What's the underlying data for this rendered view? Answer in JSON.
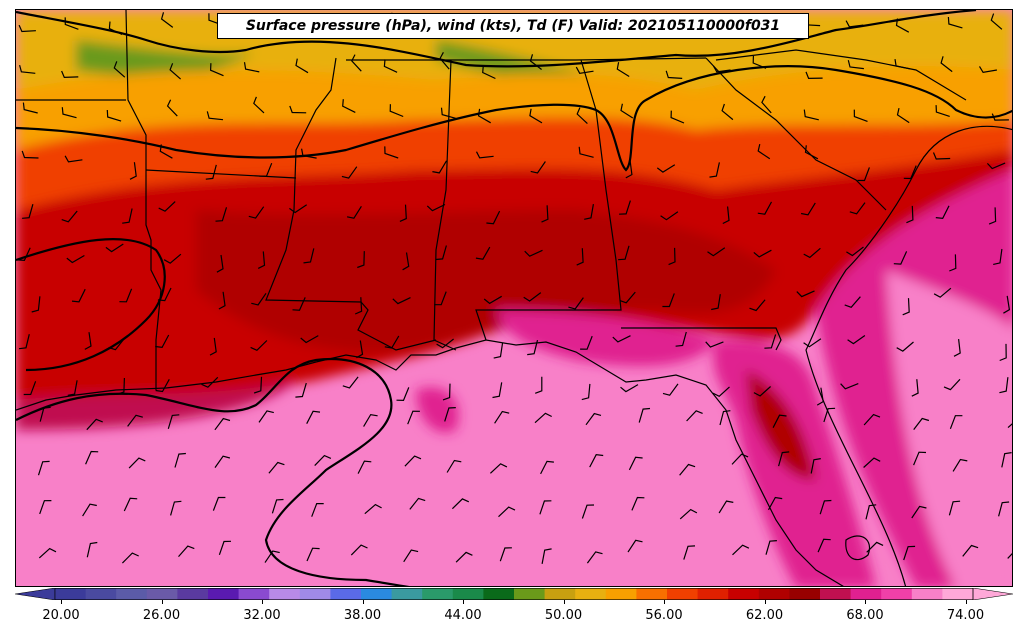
{
  "title": "Surface pressure (hPa), wind (kts), Td (F) Valid: 202105110000f031",
  "colorbar": {
    "ticks": [
      "20.00",
      "26.00",
      "32.00",
      "38.00",
      "44.00",
      "50.00",
      "56.00",
      "62.00",
      "68.00",
      "74.00"
    ],
    "colors": [
      "#3b3b9a",
      "#4a4aa0",
      "#5b5ba8",
      "#6a5aa8",
      "#5a3aa0",
      "#5a1ab0",
      "#8a4ad0",
      "#b88ae8",
      "#a08ae8",
      "#5a6ae8",
      "#2a8ae0",
      "#3a9aa0",
      "#2a9a6a",
      "#1a8a4a",
      "#0a6a1a",
      "#6a9a1a",
      "#c8a010",
      "#e8b010",
      "#f8a000",
      "#f87000",
      "#f04000",
      "#e02000",
      "#c80000",
      "#b00000",
      "#980000",
      "#c01050",
      "#e02090",
      "#f040a8",
      "#f880c8",
      "#ffa8d8"
    ]
  },
  "map": {
    "layers": [
      "dewpoint-fill",
      "pressure-contours",
      "state-borders",
      "wind-barbs"
    ]
  }
}
